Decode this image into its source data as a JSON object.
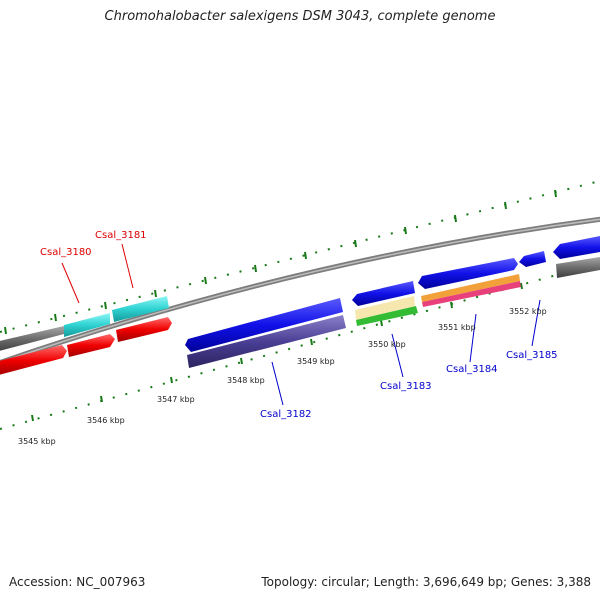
{
  "title": "Chromohalobacter salexigens DSM 3043, complete genome",
  "footer": {
    "accession": "Accession: NC_007963",
    "summary": "Topology: circular; Length: 3,696,649 bp; Genes: 3,388"
  },
  "colors": {
    "backbone": "#888888",
    "tick": "#1a7a1a",
    "forward_label": "#0000cc",
    "reverse_label": "#dd0000"
  },
  "scale_labels": [
    "3545 kbp",
    "3546 kbp",
    "3547 kbp",
    "3548 kbp",
    "3549 kbp",
    "3550 kbp",
    "3551 kbp",
    "3552 kbp"
  ],
  "genes": [
    {
      "id": "Csal_3180",
      "color": "#dd0000"
    },
    {
      "id": "Csal_3181",
      "color": "#dd0000"
    },
    {
      "id": "Csal_3182",
      "color": "#0000cc"
    },
    {
      "id": "Csal_3183",
      "color": "#0000cc"
    },
    {
      "id": "Csal_3184",
      "color": "#0000cc"
    },
    {
      "id": "Csal_3185",
      "color": "#0000cc"
    }
  ]
}
